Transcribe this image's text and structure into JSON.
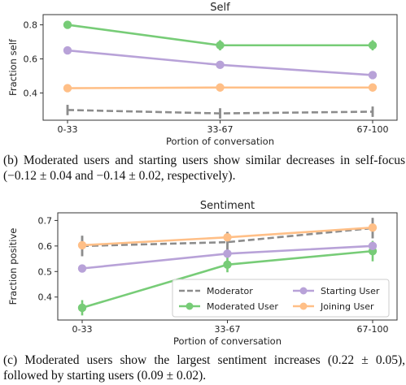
{
  "chart_data": [
    {
      "type": "line",
      "title": "Self",
      "xlabel": "Portion of conversation",
      "ylabel": "Fraction self",
      "categories": [
        "0-33",
        "33-67",
        "67-100"
      ],
      "ylim": [
        0.24,
        0.86
      ],
      "yticks": [
        0.4,
        0.6,
        0.8
      ],
      "series": [
        {
          "key": "moderator",
          "values": [
            0.3,
            0.28,
            0.29
          ],
          "err": [
            0.03,
            0.03,
            0.03
          ],
          "color": "#8c8c8c",
          "dashed": true
        },
        {
          "key": "moderated",
          "values": [
            0.8,
            0.68,
            0.68
          ],
          "err": [
            0.01,
            0.03,
            0.03
          ],
          "color": "#77cc77"
        },
        {
          "key": "starting",
          "values": [
            0.65,
            0.565,
            0.505
          ],
          "err": [
            0.01,
            0.01,
            0.01
          ],
          "color": "#b8a2d8"
        },
        {
          "key": "joining",
          "values": [
            0.428,
            0.432,
            0.432
          ],
          "err": [
            0.005,
            0.005,
            0.005
          ],
          "color": "#ffbf87"
        }
      ]
    },
    {
      "type": "line",
      "title": "Sentiment",
      "xlabel": "Portion of conversation",
      "ylabel": "Fraction positive",
      "categories": [
        "0-33",
        "33-67",
        "67-100"
      ],
      "ylim": [
        0.31,
        0.73
      ],
      "yticks": [
        0.4,
        0.5,
        0.6,
        0.7
      ],
      "legend_position": "lower right",
      "series": [
        {
          "name": "Moderator",
          "values": [
            0.6,
            0.615,
            0.67
          ],
          "err": [
            0.04,
            0.04,
            0.04
          ],
          "color": "#8c8c8c",
          "dashed": true
        },
        {
          "name": "Moderated User",
          "values": [
            0.358,
            0.527,
            0.58
          ],
          "err": [
            0.03,
            0.03,
            0.04
          ],
          "color": "#77cc77"
        },
        {
          "name": "Starting User",
          "values": [
            0.512,
            0.57,
            0.6
          ],
          "err": [
            0.01,
            0.01,
            0.01
          ],
          "color": "#b8a2d8"
        },
        {
          "name": "Joining User",
          "values": [
            0.603,
            0.634,
            0.672
          ],
          "err": [
            0.01,
            0.01,
            0.01
          ],
          "color": "#ffbf87"
        }
      ]
    }
  ],
  "captions": {
    "top": "(b) Moderated users and starting users show similar decreases in self-focus (−0.12 ± 0.04 and −0.14 ± 0.02, respectively).",
    "bottom": "(c) Moderated users show the largest sentiment increases (0.22 ± 0.05), followed by starting users (0.09 ± 0.02)."
  }
}
